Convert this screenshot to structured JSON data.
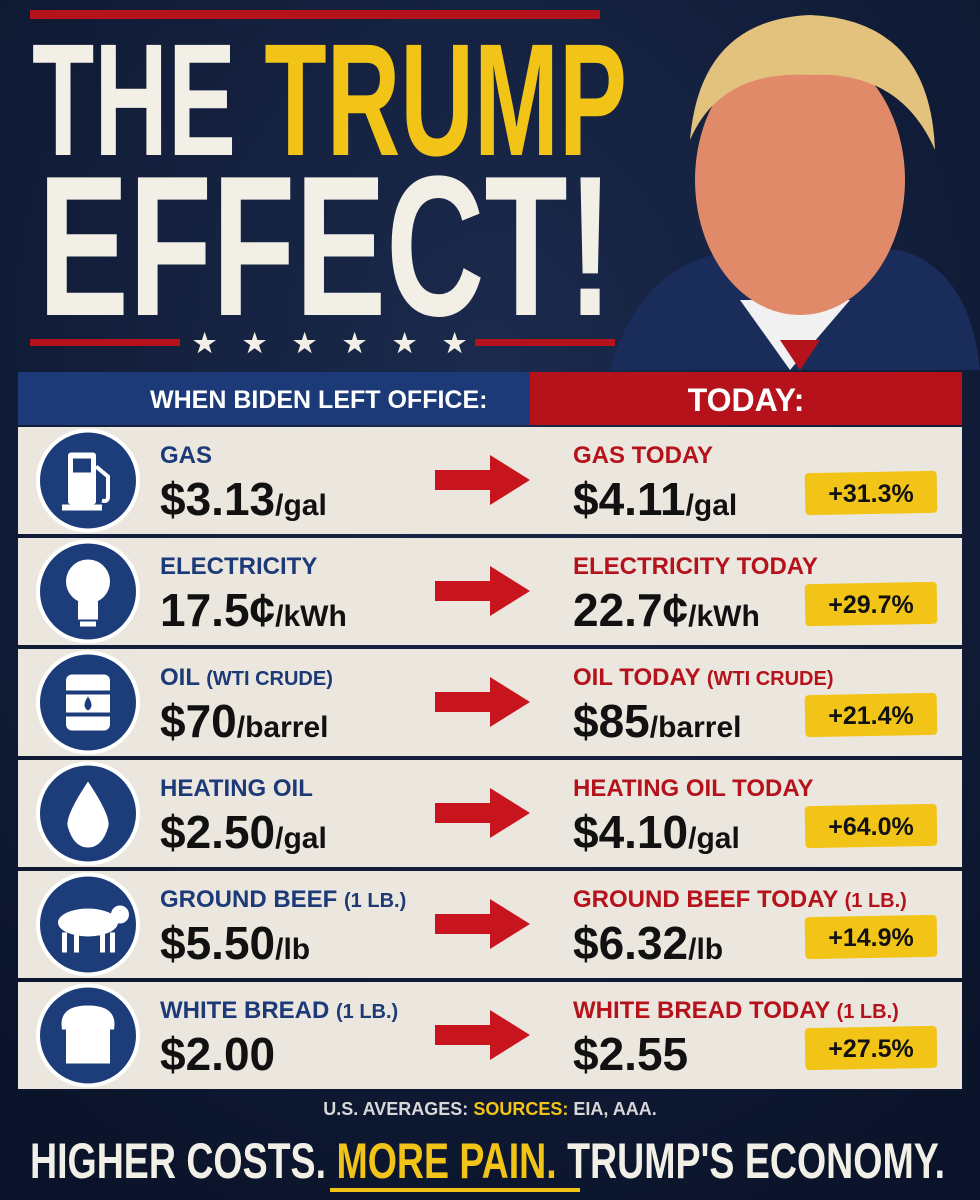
{
  "header": {
    "title_part1": "THE",
    "title_part2": "TRUMP",
    "title_part3": "EFFECT!"
  },
  "columns": {
    "left": "WHEN BIDEN LEFT OFFICE:",
    "right": "TODAY:"
  },
  "rows": [
    {
      "before_label": "GAS",
      "before_price": "$3.13",
      "before_unit": "/gal",
      "after_label": "GAS TODAY",
      "after_price": "$4.11",
      "after_unit": "/gal",
      "change": "+31.3%"
    },
    {
      "before_label": "ELECTRICITY",
      "before_price": "17.5¢",
      "before_unit": "/kWh",
      "after_label": "ELECTRICITY TODAY",
      "after_price": "22.7¢",
      "after_unit": "/kWh",
      "change": "+29.7%"
    },
    {
      "before_label": "OIL",
      "before_note": "(WTI CRUDE)",
      "before_price": "$70",
      "before_unit": "/barrel",
      "after_label": "OIL TODAY",
      "after_note": "(WTI CRUDE)",
      "after_price": "$85",
      "after_unit": "/barrel",
      "change": "+21.4%"
    },
    {
      "before_label": "HEATING OIL",
      "before_price": "$2.50",
      "before_unit": "/gal",
      "after_label": "HEATING OIL TODAY",
      "after_price": "$4.10",
      "after_unit": "/gal",
      "change": "+64.0%"
    },
    {
      "before_label": "GROUND BEEF",
      "before_note": "(1 LB.)",
      "before_price": "$5.50",
      "before_unit": "/lb",
      "after_label": "GROUND BEEF TODAY",
      "after_note": "(1 LB.)",
      "after_price": "$6.32",
      "after_unit": "/lb",
      "change": "+14.9%"
    },
    {
      "before_label": "WHITE BREAD",
      "before_note": "(1 LB.)",
      "before_price": "$2.00",
      "after_label": "WHITE BREAD TODAY",
      "after_note": "(1 LB.)",
      "after_price": "$2.55",
      "change": "+27.5%"
    }
  ],
  "footer": {
    "averages": "U.S. AVERAGES:",
    "sources_label": "SOURCES:",
    "sources": "EIA, AAA.",
    "tagline_part1": "HIGHER COSTS.",
    "tagline_part2": "MORE PAIN.",
    "tagline_part3": "TRUMP'S ECONOMY."
  }
}
